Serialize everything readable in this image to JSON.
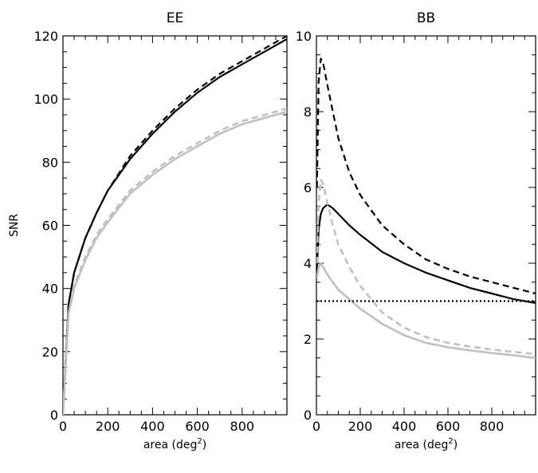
{
  "chart_data": [
    {
      "type": "line",
      "title": "EE",
      "xlabel": "area (deg",
      "xlabel_sup": "2",
      "xlabel_close": ")",
      "ylabel": "SNR",
      "xlim": [
        0,
        1000
      ],
      "ylim": [
        0,
        120
      ],
      "xticks": [
        0,
        200,
        400,
        600,
        800
      ],
      "yticks": [
        0,
        20,
        40,
        60,
        80,
        100,
        120
      ],
      "xtick_labels": [
        "0",
        "200",
        "400",
        "600",
        "800"
      ],
      "ytick_labels": [
        "0",
        "20",
        "40",
        "60",
        "80",
        "100",
        "120"
      ],
      "series": [
        {
          "color": "#000000",
          "dash": "solid",
          "x": [
            0,
            25,
            50,
            100,
            150,
            200,
            300,
            400,
            500,
            600,
            700,
            800,
            900,
            1000
          ],
          "y": [
            0,
            35,
            45,
            56,
            64,
            71,
            81,
            89,
            96,
            102,
            107,
            111,
            115,
            119
          ]
        },
        {
          "color": "#000000",
          "dash": "dashed",
          "x": [
            0,
            25,
            50,
            100,
            150,
            200,
            300,
            400,
            500,
            600,
            700,
            800,
            900,
            1000
          ],
          "y": [
            0,
            35,
            45,
            56,
            64,
            71,
            82,
            90,
            97,
            103,
            108,
            112,
            116,
            120
          ]
        },
        {
          "color": "#c0c0c0",
          "dash": "solid",
          "x": [
            0,
            25,
            50,
            100,
            150,
            200,
            300,
            400,
            500,
            600,
            700,
            800,
            900,
            1000
          ],
          "y": [
            0,
            32,
            40,
            49,
            56,
            61,
            70,
            76,
            81,
            85,
            89,
            92,
            94,
            96
          ]
        },
        {
          "color": "#c0c0c0",
          "dash": "dashed",
          "x": [
            0,
            25,
            50,
            100,
            150,
            200,
            300,
            400,
            500,
            600,
            700,
            800,
            900,
            1000
          ],
          "y": [
            0,
            32,
            41,
            50,
            57,
            62,
            71,
            77,
            82,
            86,
            90,
            93,
            95,
            97
          ]
        }
      ]
    },
    {
      "type": "line",
      "title": "BB",
      "xlabel": "area (deg",
      "xlabel_sup": "2",
      "xlabel_close": ")",
      "ylabel": "",
      "xlim": [
        0,
        1000
      ],
      "ylim": [
        0,
        10
      ],
      "xticks": [
        0,
        200,
        400,
        600,
        800
      ],
      "yticks": [
        0,
        2,
        4,
        6,
        8,
        10
      ],
      "xtick_labels": [
        "0",
        "200",
        "400",
        "600",
        "800"
      ],
      "ytick_labels": [
        "0",
        "2",
        "4",
        "6",
        "8",
        "10"
      ],
      "series": [
        {
          "color": "#000000",
          "dash": "dashed",
          "x": [
            2,
            10,
            20,
            30,
            50,
            75,
            100,
            150,
            200,
            300,
            400,
            500,
            600,
            700,
            800,
            900,
            1000
          ],
          "y": [
            6.0,
            8.8,
            9.4,
            9.3,
            8.7,
            8.0,
            7.3,
            6.4,
            5.8,
            5.0,
            4.5,
            4.1,
            3.85,
            3.65,
            3.5,
            3.35,
            3.2
          ]
        },
        {
          "color": "#000000",
          "dash": "solid",
          "x": [
            2,
            10,
            20,
            30,
            50,
            75,
            100,
            150,
            200,
            300,
            400,
            500,
            600,
            700,
            800,
            900,
            1000
          ],
          "y": [
            3.8,
            4.9,
            5.3,
            5.45,
            5.55,
            5.45,
            5.3,
            5.0,
            4.75,
            4.3,
            4.0,
            3.75,
            3.55,
            3.35,
            3.2,
            3.05,
            2.95
          ]
        },
        {
          "color": "#c0c0c0",
          "dash": "dashed",
          "x": [
            2,
            10,
            20,
            30,
            50,
            75,
            100,
            150,
            200,
            300,
            400,
            500,
            600,
            700,
            800,
            900,
            1000
          ],
          "y": [
            4.0,
            5.6,
            6.2,
            6.1,
            5.6,
            5.0,
            4.5,
            3.9,
            3.4,
            2.7,
            2.3,
            2.05,
            1.9,
            1.8,
            1.72,
            1.66,
            1.6
          ]
        },
        {
          "color": "#c0c0c0",
          "dash": "solid",
          "x": [
            2,
            10,
            20,
            30,
            50,
            75,
            100,
            150,
            200,
            300,
            400,
            500,
            600,
            700,
            800,
            900,
            1000
          ],
          "y": [
            3.6,
            3.9,
            4.0,
            3.9,
            3.7,
            3.5,
            3.3,
            3.05,
            2.8,
            2.4,
            2.1,
            1.9,
            1.78,
            1.7,
            1.63,
            1.57,
            1.5
          ]
        },
        {
          "color": "#000000",
          "dash": "dotted",
          "x": [
            0,
            1000
          ],
          "y": [
            3,
            3
          ]
        }
      ]
    }
  ]
}
